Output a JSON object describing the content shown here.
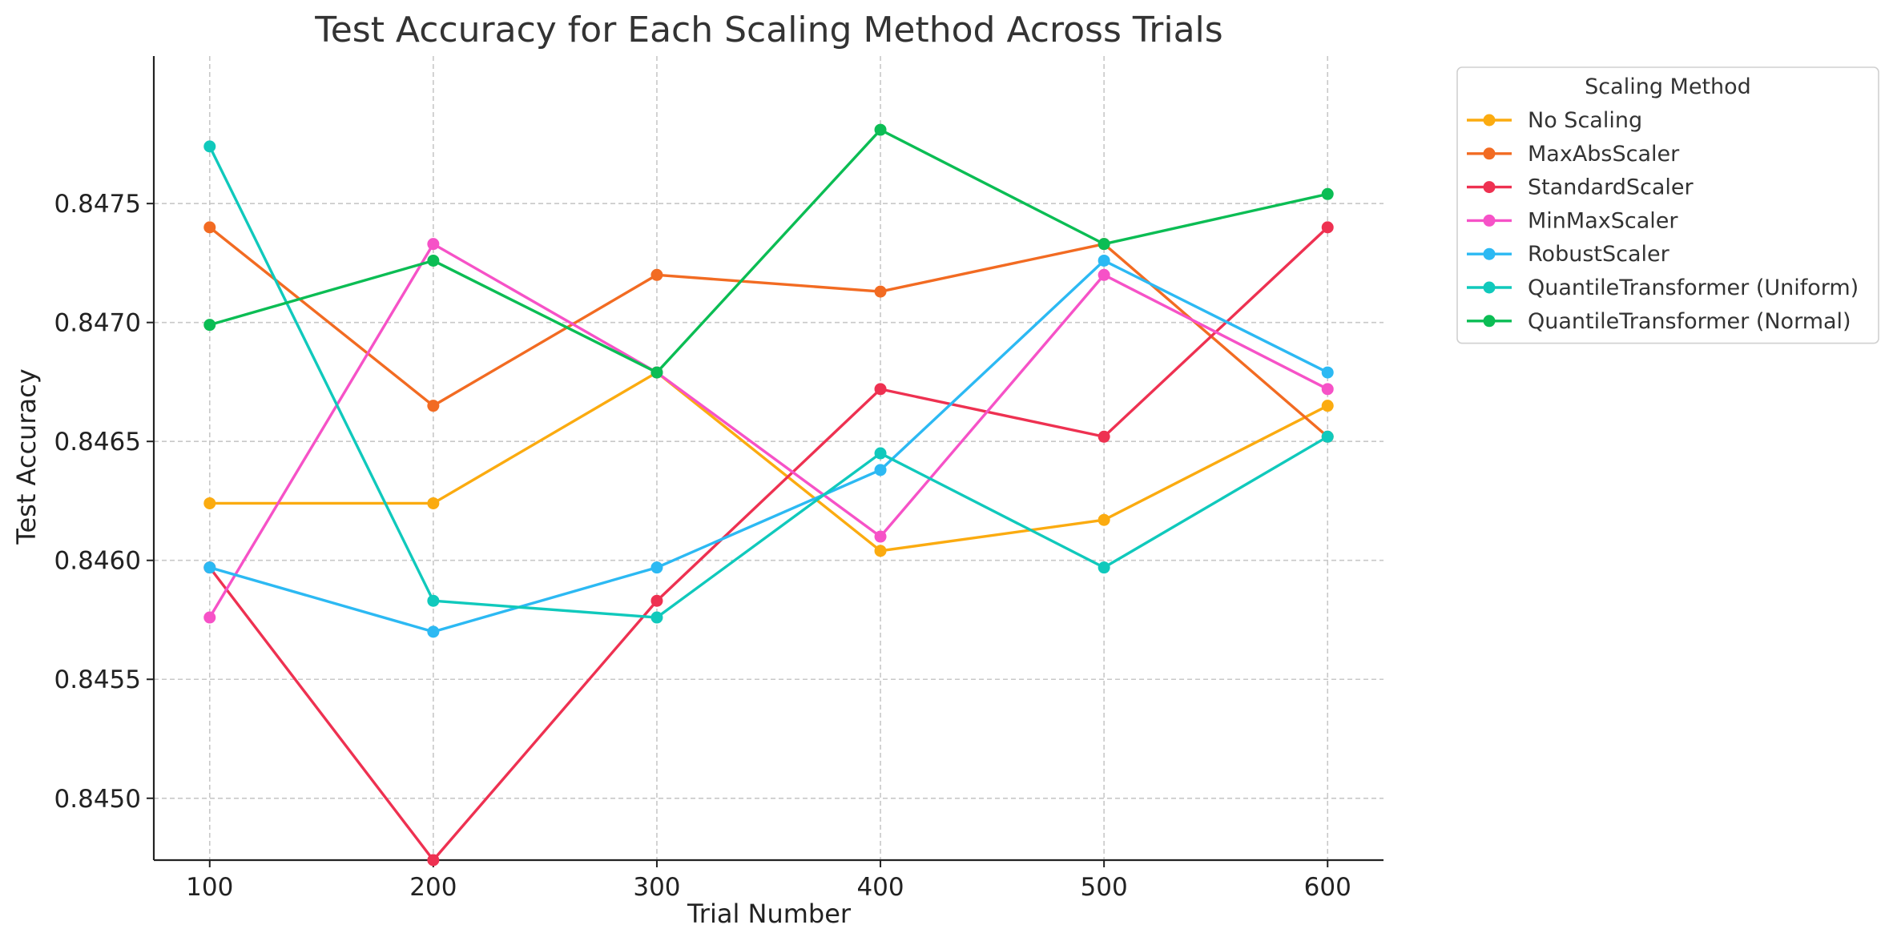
{
  "chart_data": {
    "type": "line",
    "title": "Test Accuracy for Each Scaling Method Across Trials",
    "xlabel": "Trial Number",
    "ylabel": "Test Accuracy",
    "x": [
      100,
      200,
      300,
      400,
      500,
      600
    ],
    "xticks": [
      "100",
      "200",
      "300",
      "400",
      "500",
      "600"
    ],
    "yticks": [
      "0.8450",
      "0.8455",
      "0.8460",
      "0.8465",
      "0.8470",
      "0.8475"
    ],
    "ytick_values": [
      0.845,
      0.8455,
      0.846,
      0.8465,
      0.847,
      0.8475
    ],
    "xlim": [
      75,
      625
    ],
    "ylim": [
      0.84474,
      0.84812
    ],
    "grid": true,
    "legend_title": "Scaling Method",
    "legend_position": "outside-top-right",
    "series": [
      {
        "name": "No Scaling",
        "color": "#fbab10",
        "values": [
          0.84624,
          0.84624,
          0.84679,
          0.84604,
          0.84617,
          0.84665
        ]
      },
      {
        "name": "MaxAbsScaler",
        "color": "#f26b22",
        "values": [
          0.8474,
          0.84665,
          0.8472,
          0.84713,
          0.84733,
          0.84652
        ]
      },
      {
        "name": "StandardScaler",
        "color": "#ee3151",
        "values": [
          0.84597,
          0.84474,
          0.84583,
          0.84672,
          0.84652,
          0.8474
        ]
      },
      {
        "name": "MinMaxScaler",
        "color": "#f652c7",
        "values": [
          0.84576,
          0.84733,
          0.84679,
          0.8461,
          0.8472,
          0.84672
        ]
      },
      {
        "name": "RobustScaler",
        "color": "#2cb9f3",
        "values": [
          0.84597,
          0.8457,
          0.84597,
          0.84638,
          0.84726,
          0.84679
        ]
      },
      {
        "name": "QuantileTransformer (Uniform)",
        "color": "#10c9bc",
        "values": [
          0.84774,
          0.84583,
          0.84576,
          0.84645,
          0.84597,
          0.84652
        ]
      },
      {
        "name": "QuantileTransformer (Normal)",
        "color": "#0bbd54",
        "values": [
          0.84699,
          0.84726,
          0.84679,
          0.84781,
          0.84733,
          0.84754
        ]
      }
    ]
  }
}
